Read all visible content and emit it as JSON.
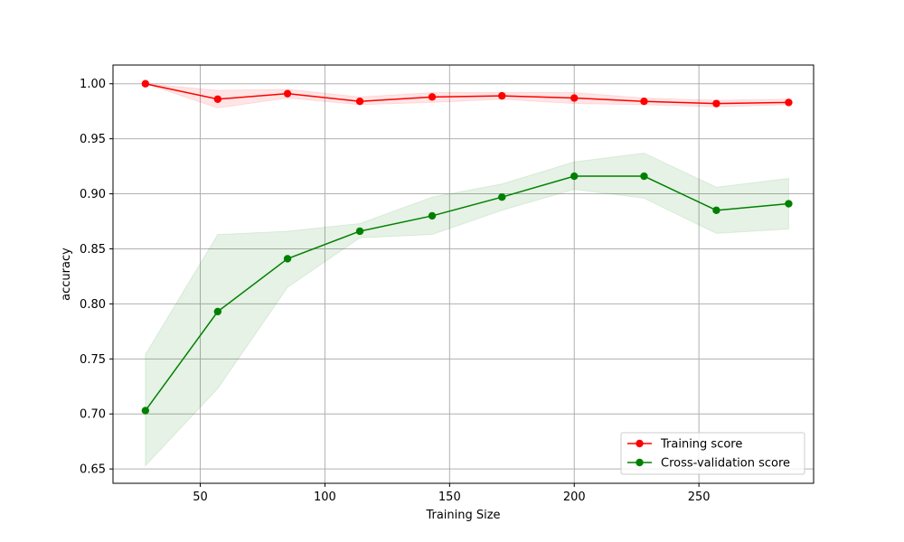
{
  "chart_data": {
    "type": "line",
    "title": "",
    "xlabel": "Training Size",
    "ylabel": "accuracy",
    "xlim": [
      15,
      296
    ],
    "ylim": [
      0.637,
      1.017
    ],
    "xticks": [
      50,
      100,
      150,
      200,
      250
    ],
    "yticks": [
      0.65,
      0.7,
      0.75,
      0.8,
      0.85,
      0.9,
      0.95,
      1.0
    ],
    "xtick_labels": [
      "50",
      "100",
      "150",
      "200",
      "250"
    ],
    "ytick_labels": [
      "0.65",
      "0.70",
      "0.75",
      "0.80",
      "0.85",
      "0.90",
      "0.95",
      "1.00"
    ],
    "grid": true,
    "legend_position": "bottom-right",
    "x": [
      28,
      57,
      85,
      114,
      143,
      171,
      200,
      228,
      257,
      286
    ],
    "series": [
      {
        "name": "Training score",
        "color": "#ff0000",
        "values": [
          1.0,
          0.986,
          0.991,
          0.984,
          0.988,
          0.989,
          0.987,
          0.984,
          0.982,
          0.983
        ],
        "lower": [
          1.0,
          0.978,
          0.987,
          0.981,
          0.983,
          0.986,
          0.982,
          0.981,
          0.979,
          0.981
        ],
        "upper": [
          1.0,
          0.994,
          0.995,
          0.988,
          0.992,
          0.992,
          0.992,
          0.987,
          0.985,
          0.986
        ]
      },
      {
        "name": "Cross-validation score",
        "color": "#008000",
        "values": [
          0.703,
          0.793,
          0.841,
          0.866,
          0.88,
          0.897,
          0.916,
          0.916,
          0.885,
          0.891
        ],
        "lower": [
          0.653,
          0.723,
          0.815,
          0.86,
          0.863,
          0.885,
          0.904,
          0.896,
          0.864,
          0.868
        ],
        "upper": [
          0.754,
          0.863,
          0.866,
          0.873,
          0.897,
          0.909,
          0.929,
          0.937,
          0.906,
          0.914
        ]
      }
    ]
  }
}
